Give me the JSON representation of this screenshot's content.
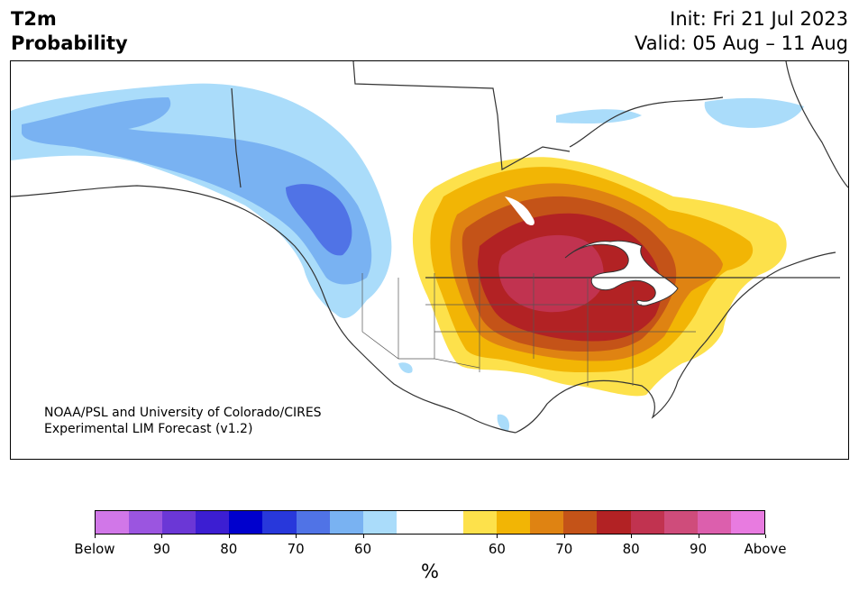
{
  "header": {
    "variable": "T2m",
    "product": "Probability",
    "init": "Init: Fri 21 Jul 2023",
    "valid": "Valid: 05 Aug – 11 Aug"
  },
  "map": {
    "region": "North America",
    "credit_line1": "NOAA/PSL and University of Colorado/CIRES",
    "credit_line2": "Experimental LIM Forecast (v1.2)"
  },
  "colorbar": {
    "unit": "%",
    "colors": [
      "#d177e8",
      "#9b55e0",
      "#6b37d6",
      "#3c1ed2",
      "#0000cd",
      "#2838db",
      "#5073e6",
      "#79b2f2",
      "#aadcfa",
      "#ffffff",
      "#ffffff",
      "#fde14b",
      "#f2b505",
      "#df8312",
      "#c45318",
      "#b22224",
      "#c13350",
      "#cf4c7b",
      "#dc5fad",
      "#e87be0"
    ],
    "tick_labels": [
      "Below",
      "90",
      "80",
      "70",
      "60",
      "60",
      "70",
      "80",
      "90",
      "Above"
    ]
  },
  "colors": {
    "below_60": "#aadcfa",
    "below_70": "#79b2f2",
    "below_80": "#5073e6",
    "above_60": "#fde14b",
    "above_65": "#f2b505",
    "above_70": "#df8312",
    "above_75": "#c45318",
    "above_80": "#b22224",
    "above_85": "#c13350",
    "coastline": "#333333"
  }
}
